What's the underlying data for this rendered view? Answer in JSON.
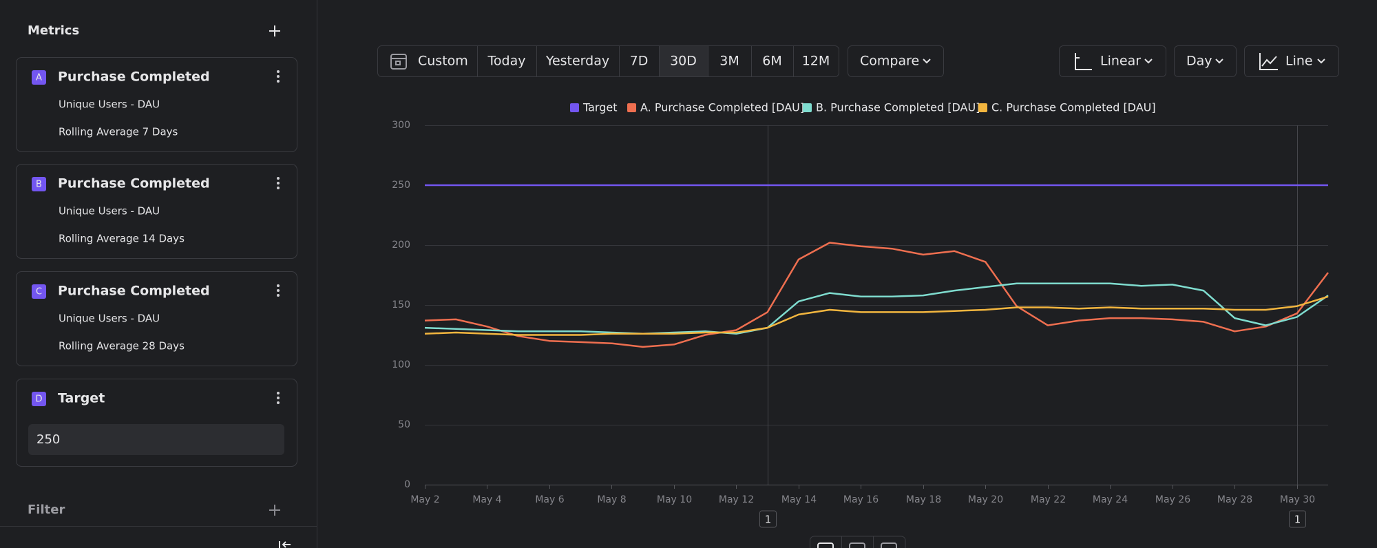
{
  "sidebar": {
    "title": "Metrics",
    "metrics": [
      {
        "letter": "A",
        "name": "Purchase Completed",
        "lines": [
          "Unique Users - DAU",
          "Rolling Average 7 Days"
        ]
      },
      {
        "letter": "B",
        "name": "Purchase Completed",
        "lines": [
          "Unique Users - DAU",
          "Rolling Average 14 Days"
        ]
      },
      {
        "letter": "C",
        "name": "Purchase Completed",
        "lines": [
          "Unique Users - DAU",
          "Rolling Average 28 Days"
        ]
      },
      {
        "letter": "D",
        "name": "Target",
        "value": "250"
      }
    ],
    "filter": "Filter"
  },
  "toolbar": {
    "ranges": [
      "Custom",
      "Today",
      "Yesterday",
      "7D",
      "30D",
      "3M",
      "6M",
      "12M"
    ],
    "active_range": 4,
    "compare": "Compare",
    "scale": "Linear",
    "interval": "Day",
    "chart_kind": "Line"
  },
  "chart_data": {
    "type": "line",
    "categories": [
      "May 2",
      null,
      "May 4",
      null,
      "May 6",
      null,
      "May 8",
      null,
      "May 10",
      null,
      "May 12",
      null,
      "May 14",
      null,
      "May 16",
      null,
      "May 18",
      null,
      "May 20",
      null,
      "May 22",
      null,
      "May 24",
      null,
      "May 26",
      null,
      "May 28",
      null,
      "May 30",
      null
    ],
    "series": [
      {
        "name": "Target",
        "color": "#7356f0",
        "values": [
          250,
          250,
          250,
          250,
          250,
          250,
          250,
          250,
          250,
          250,
          250,
          250,
          250,
          250,
          250,
          250,
          250,
          250,
          250,
          250,
          250,
          250,
          250,
          250,
          250,
          250,
          250,
          250,
          250,
          250
        ]
      },
      {
        "name": "A. Purchase Completed [DAU]",
        "color": "#ef6f50",
        "values": [
          137,
          138,
          132,
          124,
          120,
          119,
          118,
          115,
          117,
          125,
          129,
          144,
          188,
          202,
          199,
          197,
          192,
          195,
          186,
          149,
          133,
          137,
          139,
          139,
          138,
          136,
          128,
          132,
          143,
          177
        ]
      },
      {
        "name": "B. Purchase Completed [DAU]",
        "color": "#7fdccf",
        "values": [
          131,
          130,
          129,
          128,
          128,
          128,
          127,
          126,
          127,
          128,
          126,
          131,
          153,
          160,
          157,
          157,
          158,
          162,
          165,
          168,
          168,
          168,
          168,
          166,
          167,
          162,
          139,
          133,
          140,
          158
        ]
      },
      {
        "name": "C. Purchase Completed [DAU]",
        "color": "#f3b63f",
        "values": [
          126,
          127,
          126,
          125,
          125,
          125,
          126,
          126,
          126,
          127,
          127,
          131,
          142,
          146,
          144,
          144,
          144,
          145,
          146,
          148,
          148,
          147,
          148,
          147,
          147,
          147,
          146,
          146,
          149,
          157
        ]
      }
    ],
    "ylim": [
      0,
      300
    ],
    "yticks": [
      0,
      50,
      100,
      150,
      200,
      250,
      300
    ],
    "grid": true,
    "legend": "top",
    "annotations": [
      {
        "label": "1",
        "at": 11
      },
      {
        "label": "1",
        "at": 28
      }
    ]
  }
}
